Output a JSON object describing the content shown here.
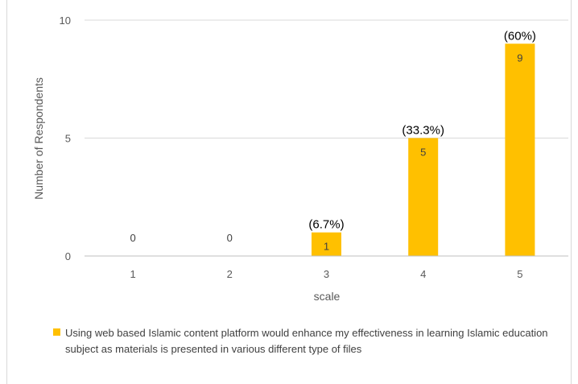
{
  "chart_data": {
    "type": "bar",
    "title": "",
    "xlabel": "scale",
    "ylabel": "Number of Respondents",
    "categories": [
      "1",
      "2",
      "3",
      "4",
      "5"
    ],
    "series": [
      {
        "name": "Using web based Islamic content platform would enhance my effectiveness in learning Islamic education subject as materials is presented in various different type of files",
        "values": [
          0,
          0,
          1,
          5,
          9
        ],
        "color": "#FFC000"
      }
    ],
    "data_labels": [
      "0",
      "0",
      "1",
      "5",
      "9"
    ],
    "percent_labels": [
      "",
      "",
      "(6.7%)",
      "(33.3%)",
      "(60%)"
    ],
    "ylim": [
      0,
      10
    ],
    "yticks": [
      "0",
      "5",
      "10"
    ],
    "grid": true,
    "legend_position": "bottom"
  }
}
